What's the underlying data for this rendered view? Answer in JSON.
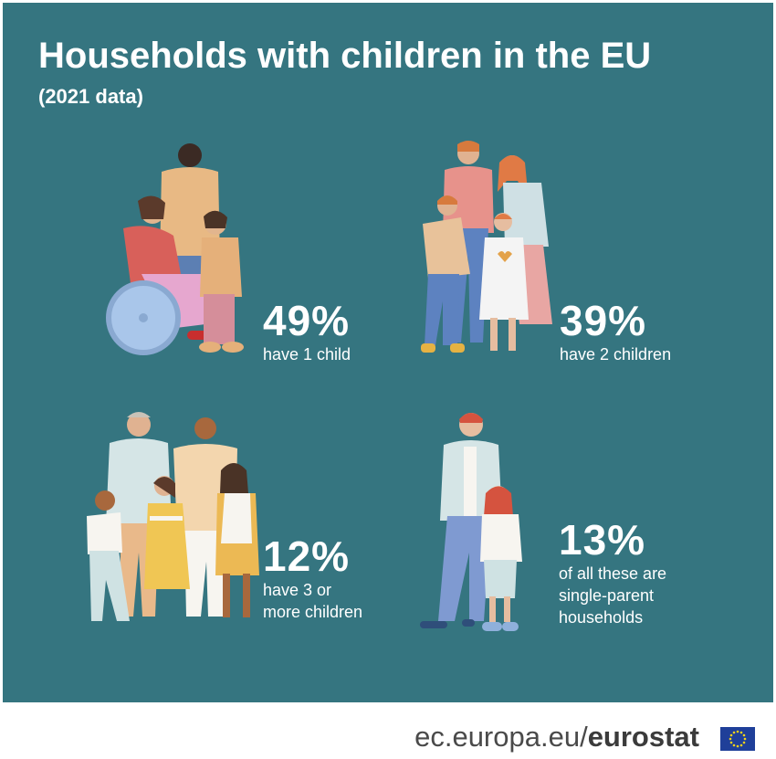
{
  "title": "Households with children in the EU",
  "subtitle": "(2021 data)",
  "stats": [
    {
      "percent": "49%",
      "desc": "have 1 child"
    },
    {
      "percent": "39%",
      "desc": "have 2 children"
    },
    {
      "percent": "12%",
      "desc_line1": "have 3 or",
      "desc_line2": "more children"
    },
    {
      "percent": "13%",
      "desc_line1": "of all these are",
      "desc_line2": "single-parent",
      "desc_line3": "households"
    }
  ],
  "footer": {
    "domain": "ec.europa.eu/",
    "brand": "eurostat"
  },
  "colors": {
    "panel": "#357580",
    "text": "#ffffff",
    "footer_text": "#4a4a4a"
  },
  "icons": [
    "family-one-child-illustration",
    "family-two-children-illustration",
    "family-three-children-illustration",
    "single-parent-illustration",
    "eu-flag-icon"
  ]
}
